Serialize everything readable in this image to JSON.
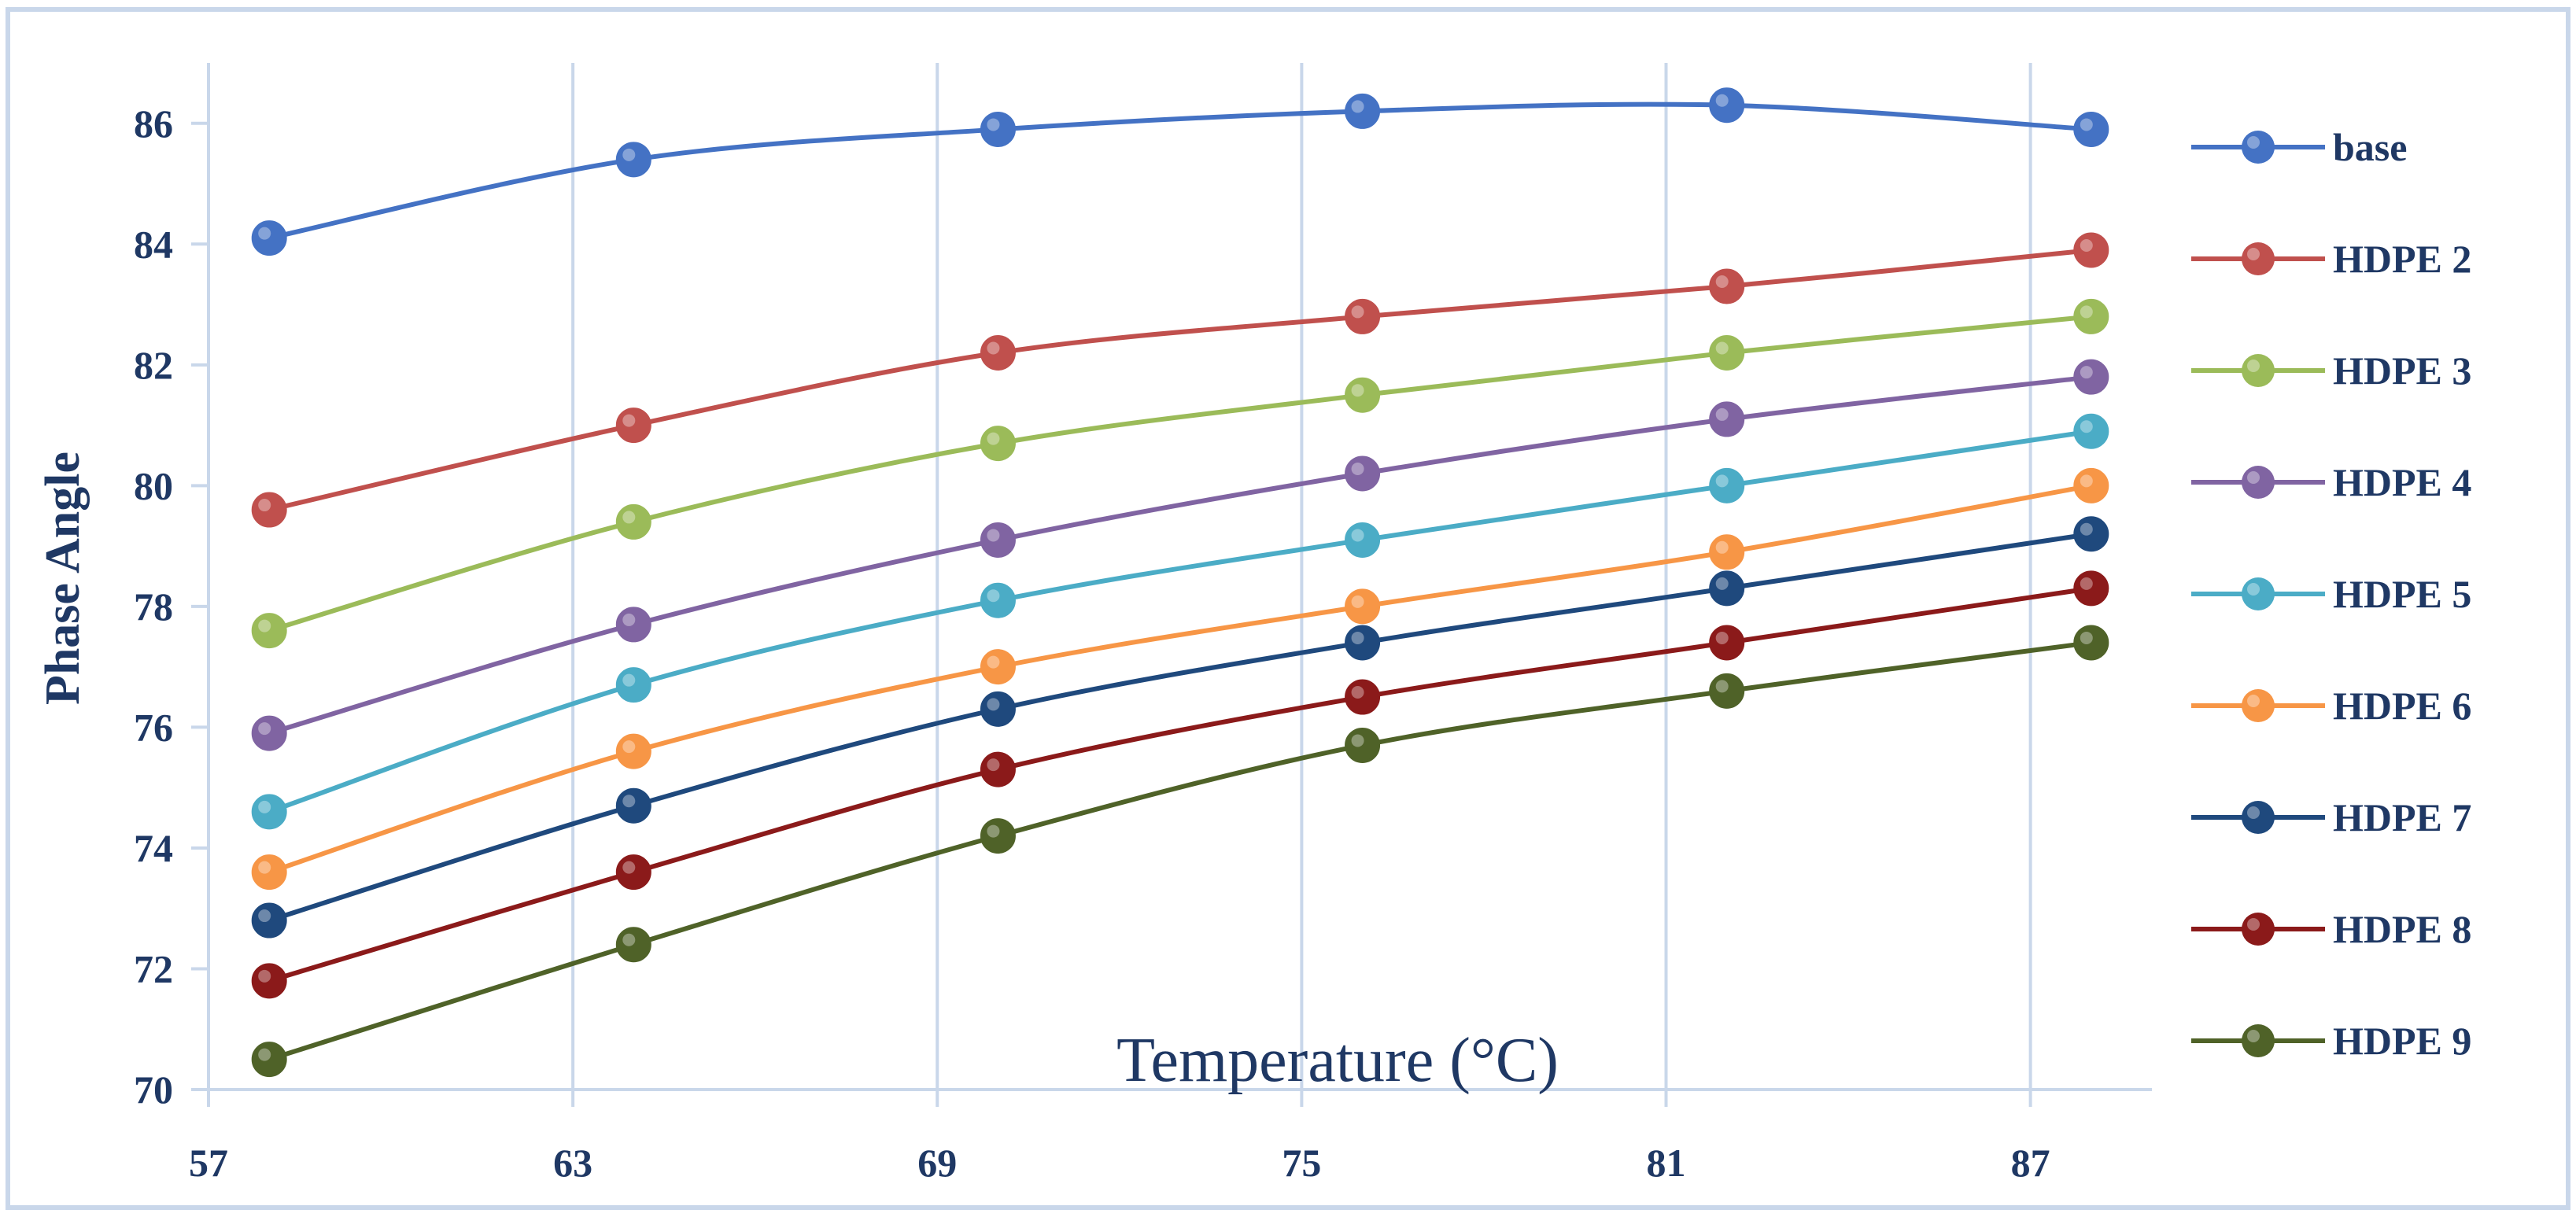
{
  "chart_data": {
    "type": "line",
    "title": "",
    "xlabel": "Temperature (°C)",
    "ylabel": "Phase Angle",
    "x": [
      58,
      64,
      70,
      76,
      82,
      88
    ],
    "x_ticks": [
      57,
      63,
      69,
      75,
      81,
      87
    ],
    "xlim": [
      57,
      89
    ],
    "y_ticks": [
      70,
      72,
      74,
      76,
      78,
      80,
      82,
      84,
      86
    ],
    "ylim": [
      70,
      87
    ],
    "grid": "vertical",
    "legend_position": "right",
    "smooth": true,
    "series": [
      {
        "name": "base",
        "color": "#4472c4",
        "values": [
          84.1,
          85.4,
          85.9,
          86.2,
          86.3,
          85.9
        ]
      },
      {
        "name": "HDPE 2",
        "color": "#c0504d",
        "values": [
          79.6,
          81.0,
          82.2,
          82.8,
          83.3,
          83.9
        ]
      },
      {
        "name": "HDPE 3",
        "color": "#9bbb59",
        "values": [
          77.6,
          79.4,
          80.7,
          81.5,
          82.2,
          82.8
        ]
      },
      {
        "name": "HDPE 4",
        "color": "#8064a2",
        "values": [
          75.9,
          77.7,
          79.1,
          80.2,
          81.1,
          81.8
        ]
      },
      {
        "name": "HDPE 5",
        "color": "#4bacc6",
        "values": [
          74.6,
          76.7,
          78.1,
          79.1,
          80.0,
          80.9
        ]
      },
      {
        "name": "HDPE 6",
        "color": "#f79646",
        "values": [
          73.6,
          75.6,
          77.0,
          78.0,
          78.9,
          80.0
        ]
      },
      {
        "name": "HDPE 7",
        "color": "#1f497d",
        "values": [
          72.8,
          74.7,
          76.3,
          77.4,
          78.3,
          79.2
        ]
      },
      {
        "name": "HDPE 8",
        "color": "#8b1a1a",
        "values": [
          71.8,
          73.6,
          75.3,
          76.5,
          77.4,
          78.3
        ]
      },
      {
        "name": "HDPE 9",
        "color": "#4f6228",
        "values": [
          70.5,
          72.4,
          74.2,
          75.7,
          76.6,
          77.4
        ]
      }
    ]
  }
}
